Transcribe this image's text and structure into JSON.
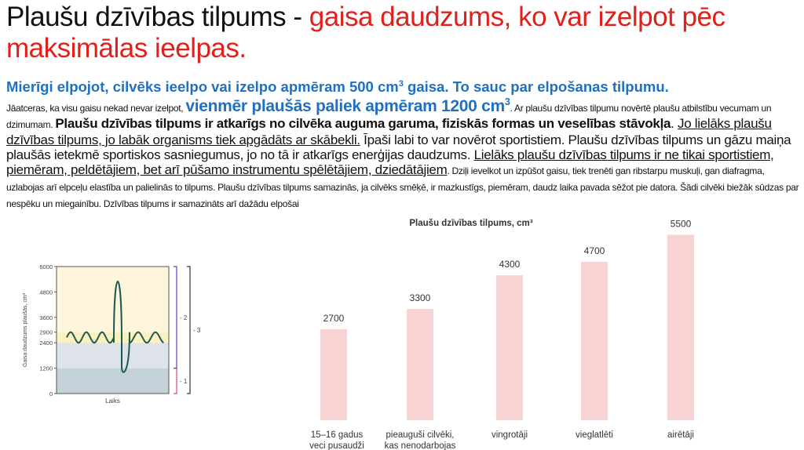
{
  "title": {
    "term": "Plaušu dzīvības tilpums - ",
    "definition": "gaisa daudzums, ko var izelpot pēc maksimālas ieelpas."
  },
  "lead": {
    "text": "Mierīgi elpojot, cilvēks ieelpo vai izelpo apmēram 500 cm",
    "sup": "3",
    "tail": " gaisa. To sauc par elpošanas tilpumu."
  },
  "body": {
    "p1": "Jāatceras, ka visu gaisu nekad nevar izelpot, ",
    "p1_big": "vienmēr plaušās paliek apmēram 1200 cm",
    "p1_big_sup": "3",
    "p1_tail": ". Ar plaušu dzīvības tilpumu novērtē plaušu atbilstību vecumam un dzimumam. ",
    "p2_bold": "Plaušu dzīvības tilpums ir atkarīgs no cilvēka auguma garuma, fiziskās formas un veselības stāvokļa",
    "p2_dot": ". ",
    "p3_underline": "Jo lielāks plaušu dzīvības tilpums, jo labāk organisms tiek apgādāts ar skābekli.",
    "p3_tail": " Īpaši labi to var novērot sportistiem. Plaušu dzīvības tilpums un gāzu maiņa plaušās ietekmē sportiskos sasniegumus, jo no tā ir atkarīgs enerģijas daudzums. ",
    "p4_underline": "Lielāks plaušu dzīvības tilpums ir ne tikai sportistiem, piemēram, peldētājiem, bet arī pūšamo instrumentu spēlētājiem, dziedātājiem",
    "p4_tail": ". Dziļi ievelkot un izpūšot gaisu, tiek trenēti gan ribstarpu muskuļi, gan diafragma, uzlabojas arī elpceļu elastība un palielinās to tilpums. Plaušu dzīvības tilpums samazinās, ja cilvēks smēķē, ir mazkustīgs, piemēram, daudz laika pavada sēžot pie datora. Šādi cilvēki biežāk sūdzas par nespēku un miegainību. Dzīvības tilpums ir samazināts arī dažādu elpošai"
  },
  "chart_data": [
    {
      "type": "line",
      "ylabel": "Gaisa daudzums plaušās, cm³",
      "xlabel": "Laiks",
      "yticks": [
        0,
        1200,
        2400,
        2900,
        3600,
        4800,
        6000
      ],
      "ylim": [
        0,
        6000
      ],
      "bands": [
        {
          "from": 0,
          "to": 1200,
          "color": "#c4d3da"
        },
        {
          "from": 1200,
          "to": 2400,
          "color": "#dde3e8"
        },
        {
          "from": 2400,
          "to": 2900,
          "color": "#fbf1c0"
        },
        {
          "from": 2900,
          "to": 6000,
          "color": "#fdf6dc"
        }
      ],
      "brackets": [
        {
          "label": "1",
          "from": 0,
          "to": 1200,
          "color": "#e0408a"
        },
        {
          "label": "2",
          "from": 1200,
          "to": 6000,
          "color": "#4a4ad0"
        },
        {
          "label": "3",
          "from": 0,
          "to": 6000,
          "color": "#333333"
        }
      ],
      "line_color": "#1f5a52",
      "tidal_range": [
        2400,
        2900
      ],
      "max_inhale": 5900,
      "max_exhale": 1100
    },
    {
      "type": "bar",
      "title": "Plaušu dzīvības tilpums, cm³",
      "categories": [
        "15–16 gadus veci pusaudži",
        "pieauguši cilvēki, kas nenodarbojas ar sportu",
        "vingrotāji",
        "vieglatlēti",
        "airētāji"
      ],
      "category_lines": [
        [
          "15–16 gadus",
          "veci pusaudži"
        ],
        [
          "pieauguši cilvēki,",
          "kas nenodarbojas",
          "ar sportu"
        ],
        [
          "vingrotāji"
        ],
        [
          "vieglatlēti"
        ],
        [
          "airētāji"
        ]
      ],
      "values": [
        2700,
        3300,
        4300,
        4700,
        5500
      ],
      "value_labels": [
        "2700",
        "3300",
        "4300",
        "4700",
        "5500"
      ],
      "bar_color": "#f8d3d3"
    }
  ]
}
